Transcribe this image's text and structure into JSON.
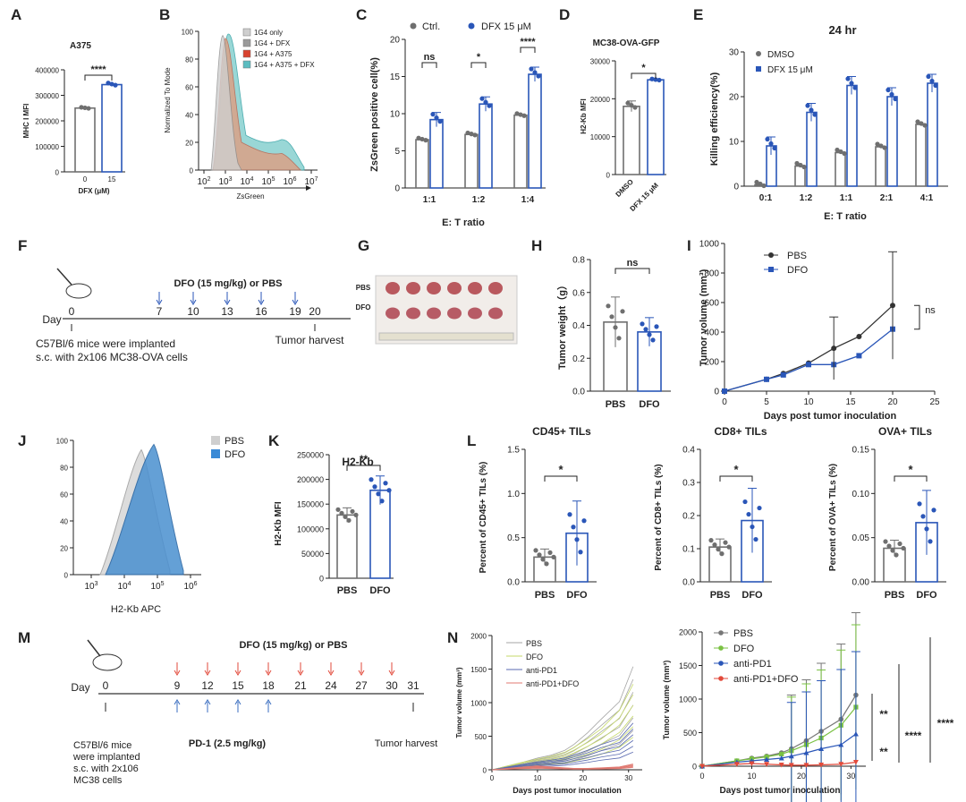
{
  "colors": {
    "gray": "#6f6f6f",
    "blue": "#2a56b8",
    "lightblue": "#3a8ad6",
    "red": "#e24a3b",
    "green": "#7ac143",
    "pink": "#e07a72"
  },
  "panels": {
    "A": {
      "letter": "A",
      "title": "A375",
      "ylabel": "MHC I MFI",
      "xlabel": "DFX (μM)",
      "ticks": [
        "0",
        "100000",
        "200000",
        "300000",
        "400000"
      ],
      "cats": [
        "0",
        "15"
      ],
      "values": [
        250000,
        342000
      ],
      "ymax": 400000,
      "sig": "****"
    },
    "B": {
      "letter": "B",
      "ylabel": "Normalized To Mode",
      "xlabel": "ZsGreen",
      "yticks": [
        "0",
        "20",
        "40",
        "60",
        "80",
        "100"
      ],
      "xticks": [
        {
          "b": "10",
          "e": "2"
        },
        {
          "b": "10",
          "e": "3"
        },
        {
          "b": "10",
          "e": "4"
        },
        {
          "b": "10",
          "e": "5"
        },
        {
          "b": "10",
          "e": "6"
        },
        {
          "b": "10",
          "e": "7"
        }
      ],
      "legend": [
        "1G4 only",
        "1G4 + DFX",
        "1G4 + A375",
        "1G4 + A375 + DFX"
      ],
      "legend_colors": [
        "#cfcfcf",
        "#9a9a9a",
        "#d9432f",
        "#5bbcc0"
      ]
    },
    "C": {
      "letter": "C",
      "ylabel": "ZsGreen positive cell(%)",
      "xlabel": "E: T ratio",
      "legend": [
        "Ctrl.",
        "DFX 15 μM"
      ],
      "cats": [
        "1:1",
        "1:2",
        "1:4"
      ],
      "ctrl": [
        6.5,
        7.2,
        9.8
      ],
      "dfx": [
        9.2,
        11.3,
        15.3
      ],
      "ymax": 20,
      "yticks": [
        "0",
        "5",
        "10",
        "15",
        "20"
      ],
      "sig": [
        "ns",
        "*",
        "****"
      ]
    },
    "D": {
      "letter": "D",
      "title": "MC38-OVA-GFP",
      "ylabel": "H2-Kb MFI",
      "cats": [
        "DMSO",
        "DFX 15 μM"
      ],
      "values": [
        18000,
        25000
      ],
      "ymax": 30000,
      "yticks": [
        "0",
        "10000",
        "20000",
        "30000"
      ],
      "sig": "*"
    },
    "E": {
      "letter": "E",
      "title": "24 hr",
      "ylabel": "Killing efficiency(%)",
      "xlabel": "E: T ratio",
      "legend": [
        "DMSO",
        "DFX 15 μM"
      ],
      "cats": [
        "0:1",
        "1:2",
        "1:1",
        "2:1",
        "4:1"
      ],
      "dmso": [
        0.3,
        4.5,
        7.5,
        8.8,
        13.8
      ],
      "dfx": [
        9,
        16.5,
        22.5,
        20,
        23
      ],
      "ymax": 30,
      "yticks": [
        "0",
        "10",
        "20",
        "30"
      ]
    },
    "F": {
      "letter": "F",
      "treat": "DFO (15 mg/kg) or PBS",
      "day": "Day",
      "days": [
        "0",
        "7",
        "10",
        "13",
        "16",
        "19",
        "20"
      ],
      "desc1": "C57Bl/6 mice were implanted",
      "desc2": "s.c. with 2x106 MC38-OVA cells",
      "harvest": "Tumor harvest"
    },
    "G": {
      "letter": "G",
      "row1": "PBS",
      "row2": "DFO"
    },
    "H": {
      "letter": "H",
      "ylabel": "Tumor weight（g）",
      "cats": [
        "PBS",
        "DFO"
      ],
      "values": [
        0.42,
        0.36
      ],
      "ymax": 0.8,
      "yticks": [
        "0.0",
        "0.2",
        "0.4",
        "0.6",
        "0.8"
      ],
      "sig": "ns"
    },
    "I": {
      "letter": "I",
      "ylabel": "Tumor volume (mm³)",
      "xlabel": "Days post tumor inoculation",
      "legend": [
        "PBS",
        "DFO"
      ],
      "x": [
        0,
        5,
        7,
        10,
        13,
        16,
        20
      ],
      "pbs": [
        0,
        80,
        120,
        190,
        290,
        370,
        580
      ],
      "dfo": [
        0,
        80,
        110,
        180,
        180,
        240,
        420
      ],
      "ymax": 1000,
      "yticks": [
        "0",
        "200",
        "400",
        "600",
        "800",
        "1000"
      ],
      "xticks": [
        "0",
        "5",
        "10",
        "15",
        "20",
        "25"
      ],
      "sig": "ns"
    },
    "J": {
      "letter": "J",
      "xlabel": "H2-Kb APC",
      "legend": [
        "PBS",
        "DFO"
      ],
      "yticks": [
        "0",
        "20",
        "40",
        "60",
        "80",
        "100"
      ],
      "xticks": [
        {
          "b": "10",
          "e": "3"
        },
        {
          "b": "10",
          "e": "4"
        },
        {
          "b": "10",
          "e": "5"
        },
        {
          "b": "10",
          "e": "6"
        }
      ]
    },
    "K": {
      "letter": "K",
      "title": "H2-Kb",
      "ylabel": "H2-Kb MFI",
      "cats": [
        "PBS",
        "DFO"
      ],
      "values": [
        128000,
        178000
      ],
      "ymax": 250000,
      "yticks": [
        "0",
        "50000",
        "100000",
        "150000",
        "200000",
        "250000"
      ],
      "sig": "**"
    },
    "L": {
      "letter": "L",
      "p1": {
        "title": "CD45+ TILs",
        "ylabel": "Percent of CD45+ TILs (%)",
        "values": [
          0.28,
          0.55
        ],
        "ymax": 1.5,
        "yticks": [
          "0.0",
          "0.5",
          "1.0",
          "1.5"
        ],
        "cats": [
          "PBS",
          "DFO"
        ],
        "sig": "*"
      },
      "p2": {
        "title": "CD8+ TILs",
        "ylabel": "Percent of CD8+ TILs (%)",
        "values": [
          0.105,
          0.185
        ],
        "ymax": 0.4,
        "yticks": [
          "0.0",
          "0.1",
          "0.2",
          "0.3",
          "0.4"
        ],
        "cats": [
          "PBS",
          "DFO"
        ],
        "sig": "*"
      },
      "p3": {
        "title": "OVA+ TILs",
        "ylabel": "Percent of OVA+ TILs (%)",
        "values": [
          0.038,
          0.067
        ],
        "ymax": 0.15,
        "yticks": [
          "0.00",
          "0.05",
          "0.10",
          "0.15"
        ],
        "cats": [
          "PBS",
          "DFO"
        ],
        "sig": "*"
      }
    },
    "M": {
      "letter": "M",
      "treat": "DFO (15 mg/kg) or PBS",
      "day": "Day",
      "days": [
        "0",
        "9",
        "12",
        "15",
        "18",
        "21",
        "24",
        "27",
        "30",
        "31"
      ],
      "desc": [
        "C57Bl/6 mice",
        "were implanted",
        "s.c. with 2x106",
        "MC38 cells"
      ],
      "pd1": "PD-1 (2.5 mg/kg)",
      "harvest": "Tumor harvest"
    },
    "N": {
      "letter": "N",
      "ylabel": "Tumor volume (mm³)",
      "xlabel": "Days post tumor inoculation",
      "legend": [
        "PBS",
        "DFO",
        "anti-PD1",
        "anti-PD1+DFO"
      ],
      "yticks": [
        "0",
        "500",
        "1000",
        "1500",
        "2000"
      ],
      "xticks": [
        "0",
        "10",
        "20",
        "30"
      ],
      "x": [
        0,
        7,
        10,
        13,
        16,
        18,
        21,
        24,
        28,
        31
      ],
      "pbs": [
        0,
        80,
        120,
        150,
        200,
        260,
        380,
        520,
        700,
        1060
      ],
      "dfo": [
        0,
        80,
        110,
        140,
        180,
        230,
        320,
        420,
        610,
        880
      ],
      "pd1": [
        0,
        60,
        80,
        100,
        120,
        150,
        200,
        260,
        320,
        480
      ],
      "combo": [
        0,
        30,
        40,
        30,
        20,
        15,
        15,
        20,
        30,
        60
      ],
      "sig": [
        "**",
        "****",
        "****",
        "**"
      ]
    }
  }
}
